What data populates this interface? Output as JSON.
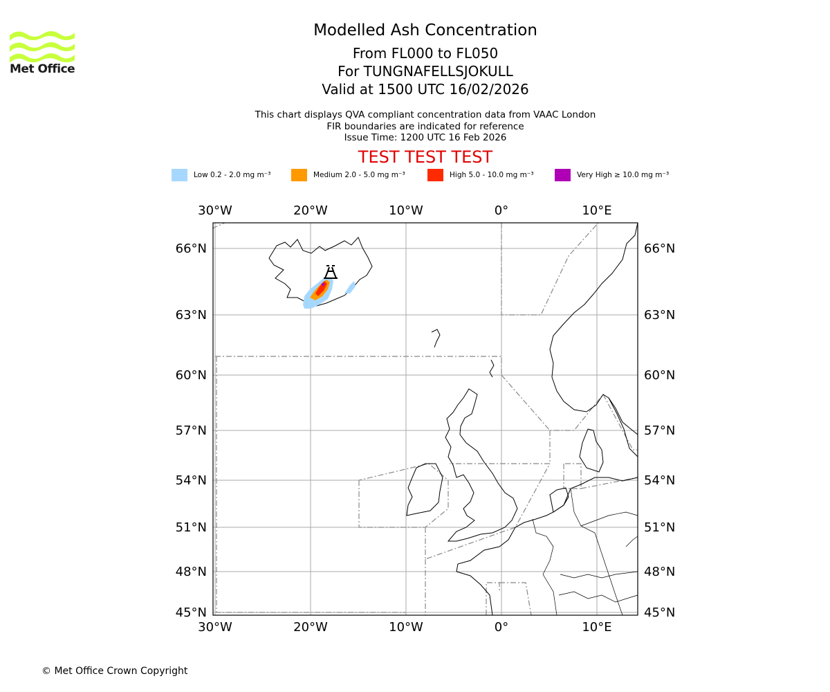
{
  "logo": {
    "text": "Met Office",
    "colors": {
      "waves": "#c8ff3c"
    }
  },
  "header": {
    "title": "Modelled Ash Concentration",
    "levels": "From FL000 to FL050",
    "volcano": "For TUNGNAFELLSJOKULL",
    "valid": "Valid at 1500 UTC 16/02/2026",
    "note1": "This chart displays QVA compliant concentration data from VAAC London",
    "note2": "FIR boundaries are indicated for reference",
    "issue": "Issue Time: 1200 UTC 16 Feb 2026",
    "test_banner": "TEST TEST TEST"
  },
  "legend": [
    {
      "label": "Low 0.2 - 2.0 mg m⁻³",
      "color": "#a6d8ff"
    },
    {
      "label": "Medium 2.0 - 5.0 mg m⁻³",
      "color": "#ff9900"
    },
    {
      "label": "High 5.0 - 10.0 mg m⁻³",
      "color": "#ff2a00"
    },
    {
      "label": "Very High ≥ 10.0 mg m⁻³",
      "color": "#b000b5"
    }
  ],
  "map": {
    "lon_ticks": [
      "30°W",
      "20°W",
      "10°W",
      "0°",
      "10°E"
    ],
    "lat_ticks": [
      "66°N",
      "63°N",
      "60°N",
      "57°N",
      "54°N",
      "51°N",
      "48°N",
      "45°N"
    ],
    "volcano_name": "TUNGNAFELLSJOKULL",
    "gridline_color": "#aaaaaa",
    "fir_color": "#888888"
  },
  "footer": {
    "copyright": "© Met Office Crown Copyright"
  }
}
